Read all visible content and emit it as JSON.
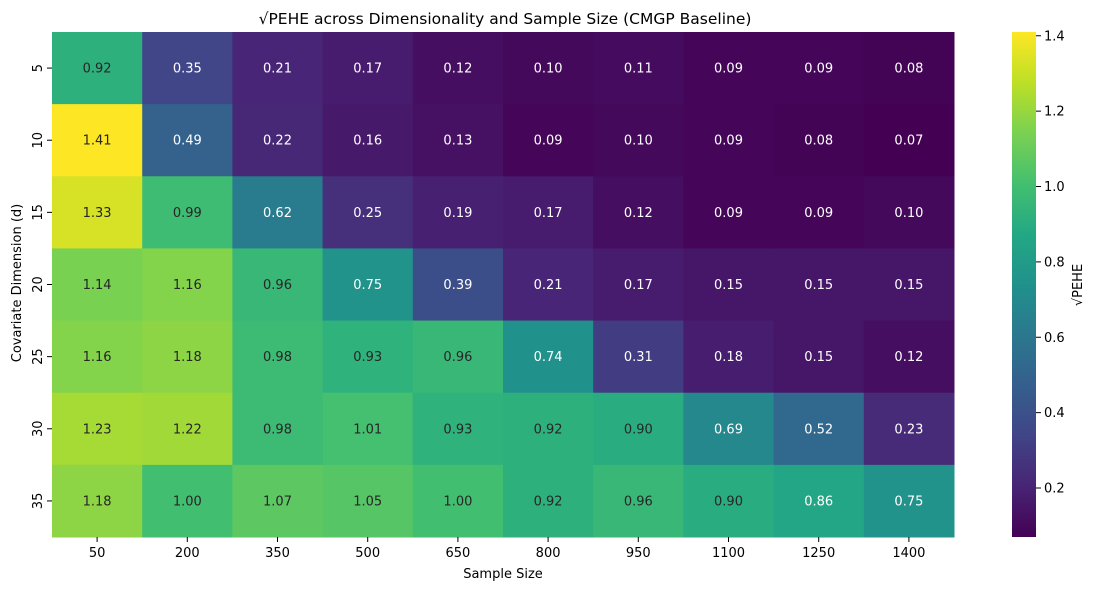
{
  "chart_data": {
    "type": "heatmap",
    "title": "√PEHE across Dimensionality and Sample Size (CMGP Baseline)",
    "xlabel": "Sample Size",
    "ylabel": "Covariate Dimension (d)",
    "x_categories": [
      "50",
      "200",
      "350",
      "500",
      "650",
      "800",
      "950",
      "1100",
      "1250",
      "1400"
    ],
    "y_categories": [
      "5",
      "10",
      "15",
      "20",
      "25",
      "30",
      "35"
    ],
    "values": [
      [
        0.92,
        0.35,
        0.21,
        0.17,
        0.12,
        0.1,
        0.11,
        0.09,
        0.09,
        0.08
      ],
      [
        1.41,
        0.49,
        0.22,
        0.16,
        0.13,
        0.09,
        0.1,
        0.09,
        0.08,
        0.07
      ],
      [
        1.33,
        0.99,
        0.62,
        0.25,
        0.19,
        0.17,
        0.12,
        0.09,
        0.09,
        0.1
      ],
      [
        1.14,
        1.16,
        0.96,
        0.75,
        0.39,
        0.21,
        0.17,
        0.15,
        0.15,
        0.15
      ],
      [
        1.16,
        1.18,
        0.98,
        0.93,
        0.96,
        0.74,
        0.31,
        0.18,
        0.15,
        0.12
      ],
      [
        1.23,
        1.22,
        0.98,
        1.01,
        0.93,
        0.92,
        0.9,
        0.69,
        0.52,
        0.23
      ],
      [
        1.18,
        1.0,
        1.07,
        1.05,
        1.0,
        0.92,
        0.96,
        0.9,
        0.86,
        0.75
      ]
    ],
    "value_format": "0.00",
    "colormap": "viridis",
    "vmin": 0.07,
    "vmax": 1.41,
    "colorbar": {
      "label": "√PEHE",
      "ticks": [
        "0.2",
        "0.4",
        "0.6",
        "0.8",
        "1.0",
        "1.2",
        "1.4"
      ]
    },
    "grid": false,
    "legend": "right"
  }
}
